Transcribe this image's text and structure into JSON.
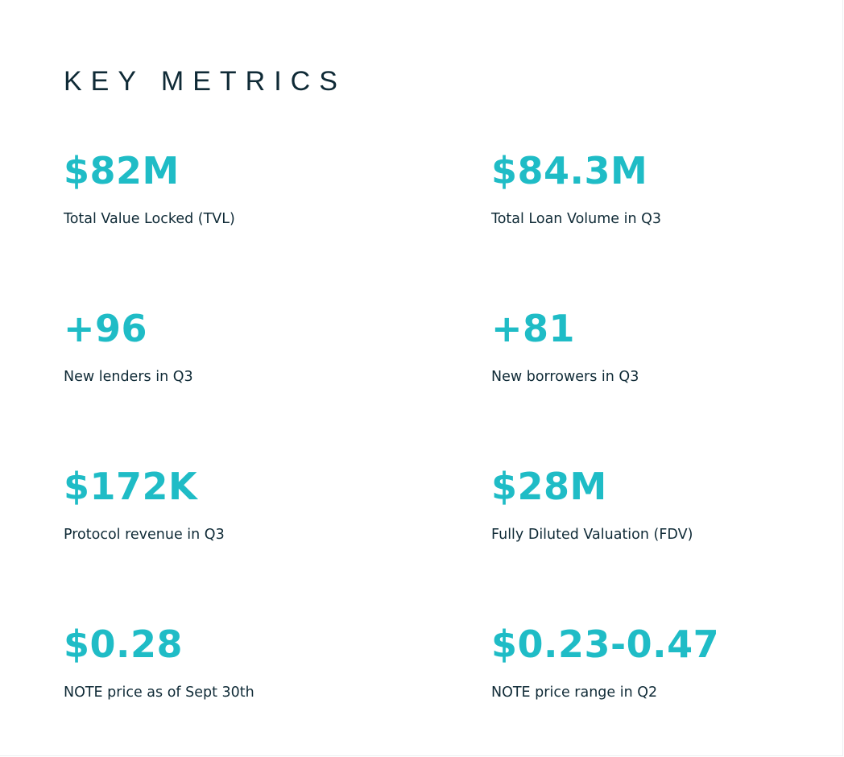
{
  "header": {
    "title": "KEY METRICS"
  },
  "metrics": [
    {
      "value": "$82M",
      "label": "Total Value Locked (TVL)"
    },
    {
      "value": "$84.3M",
      "label": "Total Loan Volume in Q3"
    },
    {
      "value": "+96",
      "label": "New lenders in Q3"
    },
    {
      "value": "+81",
      "label": "New borrowers in Q3"
    },
    {
      "value": "$172K",
      "label": "Protocol revenue in Q3"
    },
    {
      "value": "$28M",
      "label": "Fully Diluted Valuation (FDV)"
    },
    {
      "value": "$0.28",
      "label": "NOTE price as of Sept 30th"
    },
    {
      "value": "$0.23-0.47",
      "label": "NOTE price range in Q2"
    }
  ],
  "colors": {
    "accent": "#1fbcc6",
    "text": "#0f2a36",
    "background": "#ffffff"
  }
}
